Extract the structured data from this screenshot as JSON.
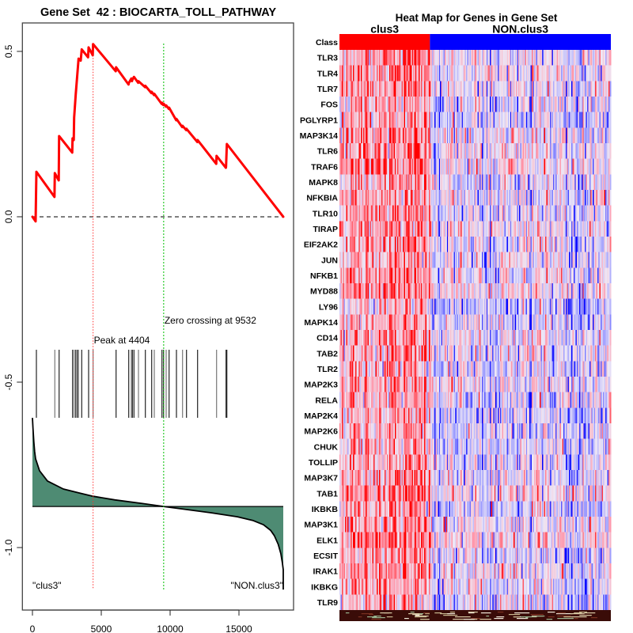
{
  "chart_data": [
    {
      "type": "line",
      "title": "Gene Set  42 : BIOCARTA_TOLL_PATHWAY",
      "xlabel": "",
      "ylabel": "",
      "xlim": [
        -730,
        18966
      ],
      "ylim": [
        -1.189,
        0.586
      ],
      "xticks": [
        0,
        5000,
        10000,
        15000
      ],
      "xtick_labels": [
        "0",
        "5000",
        "10000",
        "15000"
      ],
      "yticks": [
        -1.0,
        -0.5,
        0.0,
        0.5
      ],
      "ytick_labels": [
        "-1.0",
        "-0.5",
        "0.0",
        "0.5"
      ],
      "grid": false,
      "n_genes_ranked": 18218,
      "zero_line": 0.0,
      "series": [
        {
          "name": "running_enrichment_score",
          "color": "#ff0000",
          "points": [
            [
              0,
              0.0
            ],
            [
              230,
              -0.014
            ],
            [
              287,
              0.136
            ],
            [
              1600,
              0.06
            ],
            [
              1626,
              0.132
            ],
            [
              1910,
              0.11
            ],
            [
              1937,
              0.244
            ],
            [
              2890,
              0.194
            ],
            [
              2914,
              0.237
            ],
            [
              3000,
              0.232
            ],
            [
              3029,
              0.3
            ],
            [
              3144,
              0.37
            ],
            [
              3259,
              0.43
            ],
            [
              3351,
              0.478
            ],
            [
              3506,
              0.472
            ],
            [
              3580,
              0.506
            ],
            [
              4040,
              0.482
            ],
            [
              4080,
              0.512
            ],
            [
              4380,
              0.488
            ],
            [
              4404,
              0.522
            ],
            [
              6050,
              0.44
            ],
            [
              6075,
              0.452
            ],
            [
              6980,
              0.4
            ],
            [
              6994,
              0.404
            ],
            [
              7184,
              0.418
            ],
            [
              7230,
              0.41
            ],
            [
              7259,
              0.414
            ],
            [
              7374,
              0.423
            ],
            [
              7680,
              0.405
            ],
            [
              7701,
              0.41
            ],
            [
              8180,
              0.392
            ],
            [
              8201,
              0.396
            ],
            [
              8640,
              0.374
            ],
            [
              8661,
              0.378
            ],
            [
              8830,
              0.368
            ],
            [
              8851,
              0.372
            ],
            [
              9390,
              0.341
            ],
            [
              9408,
              0.345
            ],
            [
              9500,
              0.338
            ],
            [
              9523,
              0.342
            ],
            [
              9700,
              0.333
            ],
            [
              9713,
              0.337
            ],
            [
              9910,
              0.326
            ],
            [
              9925,
              0.33
            ],
            [
              10440,
              0.292
            ],
            [
              10460,
              0.296
            ],
            [
              10880,
              0.271
            ],
            [
              10902,
              0.275
            ],
            [
              11170,
              0.262
            ],
            [
              11190,
              0.266
            ],
            [
              11980,
              0.226
            ],
            [
              11994,
              0.232
            ],
            [
              13350,
              0.16
            ],
            [
              13374,
              0.184
            ],
            [
              14050,
              0.148
            ],
            [
              14063,
              0.152
            ],
            [
              14121,
              0.22
            ],
            [
              18218,
              0.0
            ]
          ]
        },
        {
          "name": "ranked_list_metric",
          "color": "#000000",
          "fill": "#4e8b73",
          "baseline": -0.876,
          "points": [
            [
              0,
              -0.608
            ],
            [
              40,
              -0.64
            ],
            [
              100,
              -0.68
            ],
            [
              160,
              -0.71
            ],
            [
              230,
              -0.732
            ],
            [
              517,
              -0.768
            ],
            [
              1092,
              -0.799
            ],
            [
              2241,
              -0.823
            ],
            [
              3391,
              -0.835
            ],
            [
              4404,
              -0.845
            ],
            [
              6000,
              -0.856
            ],
            [
              8000,
              -0.867
            ],
            [
              9532,
              -0.876
            ],
            [
              11000,
              -0.884
            ],
            [
              13000,
              -0.895
            ],
            [
              14885,
              -0.907
            ],
            [
              16000,
              -0.918
            ],
            [
              16782,
              -0.931
            ],
            [
              17300,
              -0.948
            ],
            [
              17569,
              -0.964
            ],
            [
              17850,
              -0.99
            ],
            [
              18046,
              -1.019
            ],
            [
              18150,
              -1.045
            ],
            [
              18218,
              -1.067
            ],
            [
              18218,
              -1.127
            ]
          ]
        }
      ],
      "hits": [
        287,
        1626,
        1937,
        2914,
        3029,
        3144,
        3259,
        3351,
        3580,
        4080,
        4404,
        6075,
        6994,
        7184,
        7259,
        7374,
        7701,
        8201,
        8661,
        8851,
        9408,
        9523,
        9713,
        9925,
        10460,
        10902,
        11190,
        11994,
        13374,
        14063,
        14121
      ],
      "peak": {
        "rank": 4404,
        "es": 0.522,
        "label": "Peak at 4404",
        "color": "#ff3030"
      },
      "zero_crossing": {
        "rank": 9532,
        "label": "Zero crossing at 9532",
        "color": "#00c000"
      },
      "class_labels": {
        "left": "\"clus3\"",
        "right": "\"NON.clus3\""
      }
    },
    {
      "type": "heatmap",
      "title": "Heat Map for Genes in Gene Set",
      "class_row_label": "Class",
      "classes": [
        {
          "name": "clus3",
          "color": "#ff0000",
          "fraction": 0.335
        },
        {
          "name": "NON.clus3",
          "color": "#0000ff",
          "fraction": 0.665
        }
      ],
      "genes": [
        "TLR3",
        "TLR4",
        "TLR7",
        "FOS",
        "PGLYRP1",
        "MAP3K14",
        "TLR6",
        "TRAF6",
        "MAPK8",
        "NFKBIA",
        "TLR10",
        "TIRAP",
        "EIF2AK2",
        "JUN",
        "NFKB1",
        "MYD88",
        "LY96",
        "MAPK14",
        "CD14",
        "TAB2",
        "TLR2",
        "MAP2K3",
        "RELA",
        "MAP2K4",
        "MAP2K6",
        "CHUK",
        "TOLLIP",
        "MAP3K7",
        "TAB1",
        "IKBKB",
        "MAP3K1",
        "ELK1",
        "ECSIT",
        "IRAK1",
        "IKBKG",
        "TLR9"
      ],
      "color_scale": {
        "low": "#0000ff",
        "mid": "#eee8f6",
        "high": "#ff0000"
      }
    }
  ]
}
